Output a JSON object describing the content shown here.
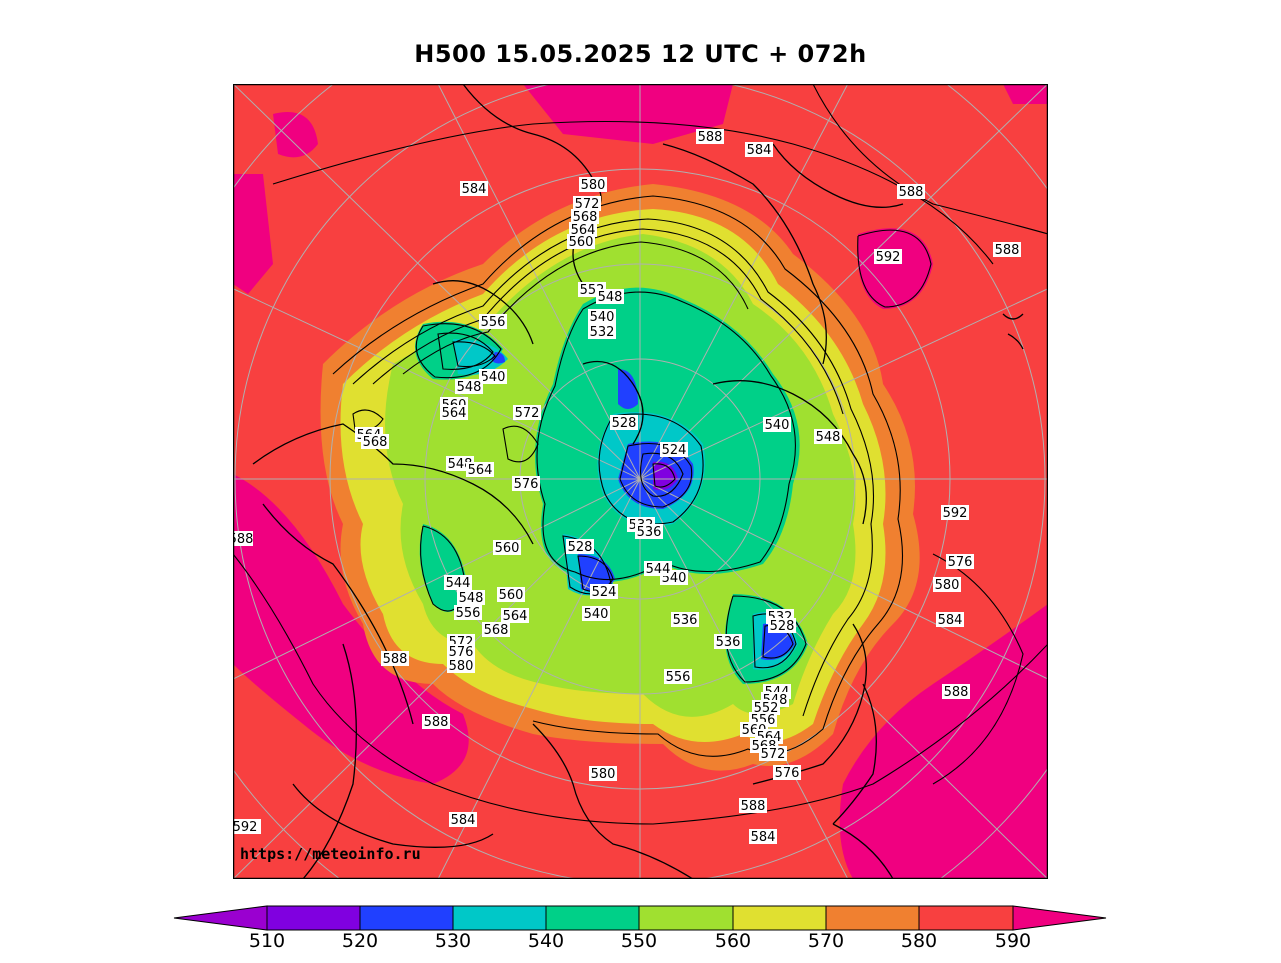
{
  "title": "H500  15.05.2025 12 UTC + 072h",
  "watermark": "https://meteoinfo.ru",
  "legend": {
    "levels": [
      "510",
      "520",
      "530",
      "540",
      "550",
      "560",
      "570",
      "580",
      "590"
    ],
    "colors": {
      "below_510": "#9a00d0",
      "510-520": "#8000e0",
      "520-530": "#2040ff",
      "530-540": "#00c8c8",
      "540-550": "#00d088",
      "550-560": "#a0e030",
      "560-570": "#e0e030",
      "570-580": "#f08030",
      "580-590": "#f84040",
      "above_590": "#f00080"
    }
  },
  "contour_labels": [
    "588",
    "584",
    "584",
    "588",
    "592",
    "588",
    "580",
    "572",
    "568",
    "564",
    "560",
    "556",
    "552",
    "548",
    "540",
    "532",
    "556",
    "552",
    "540",
    "548",
    "560",
    "564",
    "572",
    "564",
    "568",
    "540",
    "548",
    "524",
    "528",
    "532",
    "536",
    "548",
    "564",
    "576",
    "560",
    "528",
    "524",
    "544",
    "540",
    "540",
    "544",
    "548",
    "556",
    "560",
    "564",
    "568",
    "572",
    "576",
    "580",
    "588",
    "592",
    "536",
    "536",
    "556",
    "532",
    "528",
    "544",
    "548",
    "552",
    "556",
    "560",
    "564",
    "568",
    "572",
    "576",
    "580",
    "584",
    "588",
    "592",
    "576",
    "580",
    "584",
    "588",
    "592",
    "588",
    "584",
    "588",
    "592"
  ]
}
